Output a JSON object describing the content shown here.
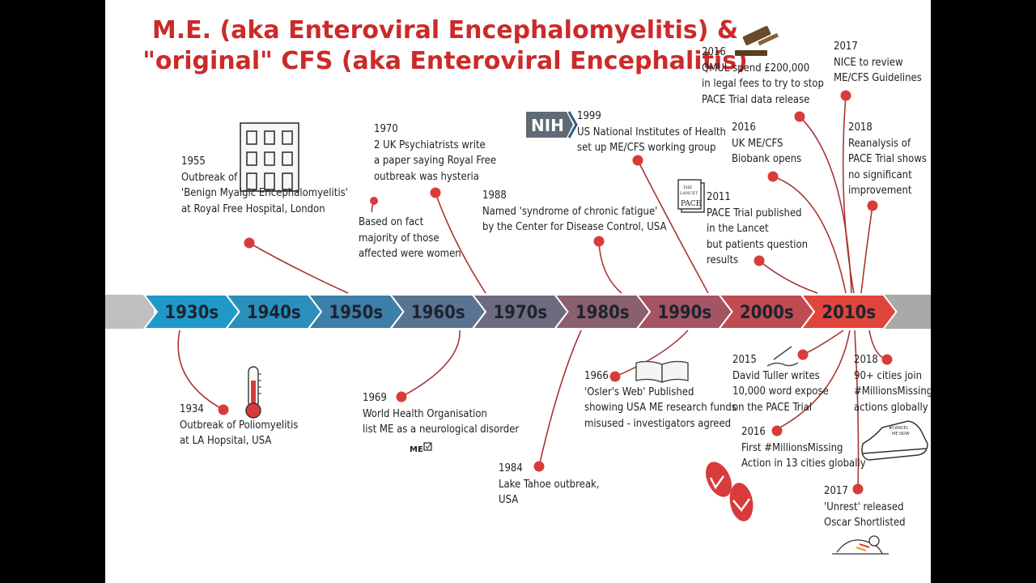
{
  "title": {
    "line1": "M.E. (aka Enteroviral Encephalomyelitis) &",
    "line2": "\"original\" CFS (aka Enteroviral Encephalitis)"
  },
  "decades": [
    "1930s",
    "1940s",
    "1950s",
    "1960s",
    "1970s",
    "1980s",
    "1990s",
    "2000s",
    "2010s"
  ],
  "colors": {
    "title": "#cc2a2a",
    "dot": "#d93b3b",
    "line": "#a83535",
    "decades": [
      "#1e9ac8",
      "#2b8fbc",
      "#3c7fa8",
      "#5a7391",
      "#6f6b7e",
      "#8a5f6e",
      "#a45463",
      "#bf4c51",
      "#e0453c"
    ]
  },
  "icons": [
    "building-icon",
    "gavel-icon",
    "nih-logo-icon",
    "lancet-journal-icon",
    "thermometer-icon",
    "book-icon",
    "me-box-icon",
    "pen-icon",
    "sneaker-icon",
    "flip-flops-icon",
    "reclining-person-icon"
  ],
  "logos": {
    "nih": "NIH",
    "lancet": [
      "THE",
      "LANCET",
      "PACE"
    ],
    "me": "ME",
    "sneaker": [
      "#CANCEL",
      "ME NOW"
    ]
  },
  "events_above": [
    {
      "name": "event-1955",
      "lines": [
        "1955",
        "Outbreak of",
        "'Benign Myalgic Encephalomyelitis'",
        "at Royal Free Hospital, London"
      ]
    },
    {
      "name": "event-1970",
      "lines": [
        "1970",
        "2 UK Psychiatrists write",
        "a paper saying Royal Free",
        "outbreak was hysteria"
      ]
    },
    {
      "name": "event-1970-note",
      "lines": [
        "Based on fact",
        "majority of those",
        "affected were women"
      ]
    },
    {
      "name": "event-1988",
      "lines": [
        "1988",
        "Named 'syndrome of chronic fatigue'",
        "by the Center for Disease Control, USA"
      ]
    },
    {
      "name": "event-1999",
      "lines": [
        "1999",
        "US National Institutes of Health",
        "set up ME/CFS working group"
      ]
    },
    {
      "name": "event-2016-qmul",
      "lines": [
        "2016",
        "QMUL spend £200,000",
        "in legal fees to try to stop",
        "PACE Trial data release"
      ]
    },
    {
      "name": "event-2016-biobank",
      "lines": [
        "2016",
        "UK ME/CFS",
        "Biobank opens"
      ]
    },
    {
      "name": "event-2011",
      "lines": [
        "2011",
        "PACE Trial published",
        "in the Lancet",
        "but patients question",
        "results"
      ]
    },
    {
      "name": "event-2017-nice",
      "lines": [
        "2017",
        "NICE to review",
        "ME/CFS Guidelines"
      ]
    },
    {
      "name": "event-2018-reanalysis",
      "lines": [
        "2018",
        "Reanalysis of",
        "PACE Trial shows",
        "no significant",
        "improvement"
      ]
    }
  ],
  "events_below": [
    {
      "name": "event-1934",
      "lines": [
        "1934",
        "Outbreak of Poliomyelitis",
        "at LA Hopsital, USA"
      ]
    },
    {
      "name": "event-1969",
      "lines": [
        "1969",
        "World Health Organisation",
        "list ME as a neurological disorder"
      ]
    },
    {
      "name": "event-1984",
      "lines": [
        "1984",
        "Lake Tahoe outbreak,",
        "USA"
      ]
    },
    {
      "name": "event-1966",
      "lines": [
        "1966",
        "'Osler's Web' Published",
        "showing USA ME research funds",
        "misused - investigators agreed"
      ]
    },
    {
      "name": "event-2015",
      "lines": [
        "2015",
        "David Tuller writes",
        "10,000 word expose",
        "on the PACE Trial"
      ]
    },
    {
      "name": "event-2016-missing",
      "lines": [
        "2016",
        "First #MillionsMissing",
        "Action in 13 cities globally"
      ]
    },
    {
      "name": "event-2018-cities",
      "lines": [
        "2018",
        "90+ cities join",
        "#MillionsMissing",
        "actions globally"
      ]
    },
    {
      "name": "event-2017-unrest",
      "lines": [
        "2017",
        "'Unrest' released",
        "Oscar Shortlisted"
      ]
    }
  ]
}
